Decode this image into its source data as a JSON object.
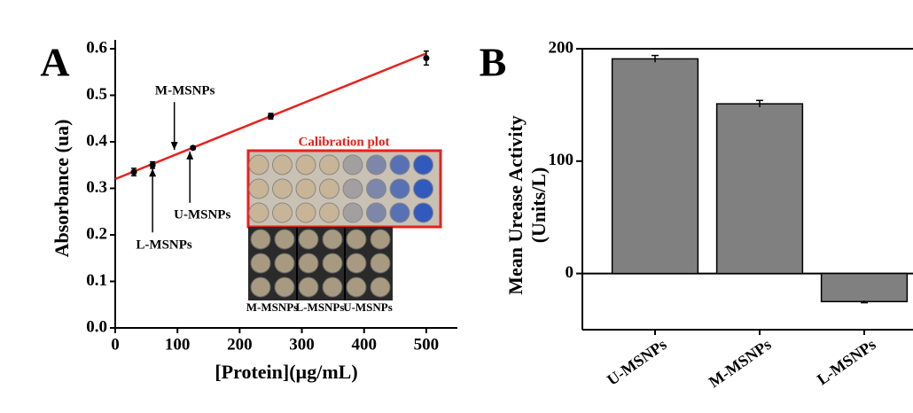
{
  "chart_data": [
    {
      "type": "scatter",
      "panel": "A",
      "xlabel": "[Protein](µg/mL)",
      "ylabel": "Absorbance (ua)",
      "x": [
        30,
        60,
        125,
        250,
        500
      ],
      "values": [
        0.335,
        0.35,
        0.387,
        0.455,
        0.58
      ],
      "errors": [
        0.008,
        0.007,
        0.003,
        0.006,
        0.015
      ],
      "color": "#000000",
      "fit": {
        "x": [
          0,
          500
        ],
        "values": [
          0.32,
          0.59
        ],
        "color": "#e8211c"
      },
      "xlim": [
        0,
        550
      ],
      "xticks": [
        0,
        100,
        200,
        300,
        400,
        500
      ],
      "ylim": [
        0,
        0.6
      ],
      "yticks": [
        {
          "value": 0,
          "label": "0.0"
        },
        0.1,
        0.2,
        0.3,
        0.4,
        0.5,
        0.6
      ],
      "annotations": [
        {
          "text": "M-MSNPs",
          "x": 95,
          "y": 0.375
        },
        {
          "text": "L-MSNPs",
          "x": 60,
          "y": 0.35
        },
        {
          "text": "U-MSNPs",
          "x": 120,
          "y": 0.387
        }
      ],
      "inset": {
        "title": "Calibration plot",
        "labels": [
          "M-MSNPs",
          "L-MSNPs",
          "U-MSNPs"
        ]
      }
    },
    {
      "type": "bar",
      "panel": "B",
      "ylabel": [
        "Mean Urease Activity",
        "(Units/L)"
      ],
      "categories": [
        "U-MSNPs",
        "M-MSNPs",
        "L-MSNPs"
      ],
      "values": [
        191,
        151,
        -25
      ],
      "errors": [
        3,
        3,
        1
      ],
      "color": "#808080",
      "ylim": [
        -50,
        200
      ],
      "yticks": [
        0,
        100,
        200
      ]
    }
  ]
}
